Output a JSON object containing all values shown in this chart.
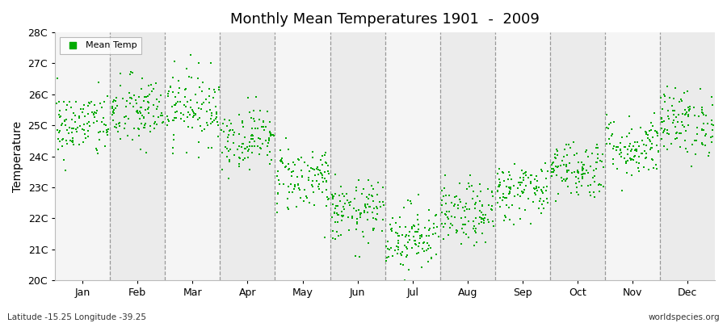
{
  "title": "Monthly Mean Temperatures 1901  -  2009",
  "ylabel": "Temperature",
  "bottom_left_text": "Latitude -15.25 Longitude -39.25",
  "bottom_right_text": "worldspecies.org",
  "legend_label": "Mean Temp",
  "dot_color": "#00aa00",
  "background_color": "#f5f5f5",
  "band_color_odd": "#ebebeb",
  "band_color_even": "#f5f5f5",
  "ylim": [
    20,
    28
  ],
  "ytick_labels": [
    "20C",
    "21C",
    "22C",
    "23C",
    "24C",
    "25C",
    "26C",
    "27C",
    "28C"
  ],
  "ytick_values": [
    20,
    21,
    22,
    23,
    24,
    25,
    26,
    27,
    28
  ],
  "months": [
    "Jan",
    "Feb",
    "Mar",
    "Apr",
    "May",
    "Jun",
    "Jul",
    "Aug",
    "Sep",
    "Oct",
    "Nov",
    "Dec"
  ],
  "monthly_means": [
    25.0,
    25.4,
    25.6,
    24.6,
    23.3,
    22.2,
    21.4,
    22.1,
    22.9,
    23.6,
    24.3,
    25.1
  ],
  "monthly_stds": [
    0.55,
    0.6,
    0.6,
    0.5,
    0.55,
    0.5,
    0.55,
    0.5,
    0.48,
    0.48,
    0.5,
    0.55
  ],
  "n_years": 109,
  "seed": 42
}
